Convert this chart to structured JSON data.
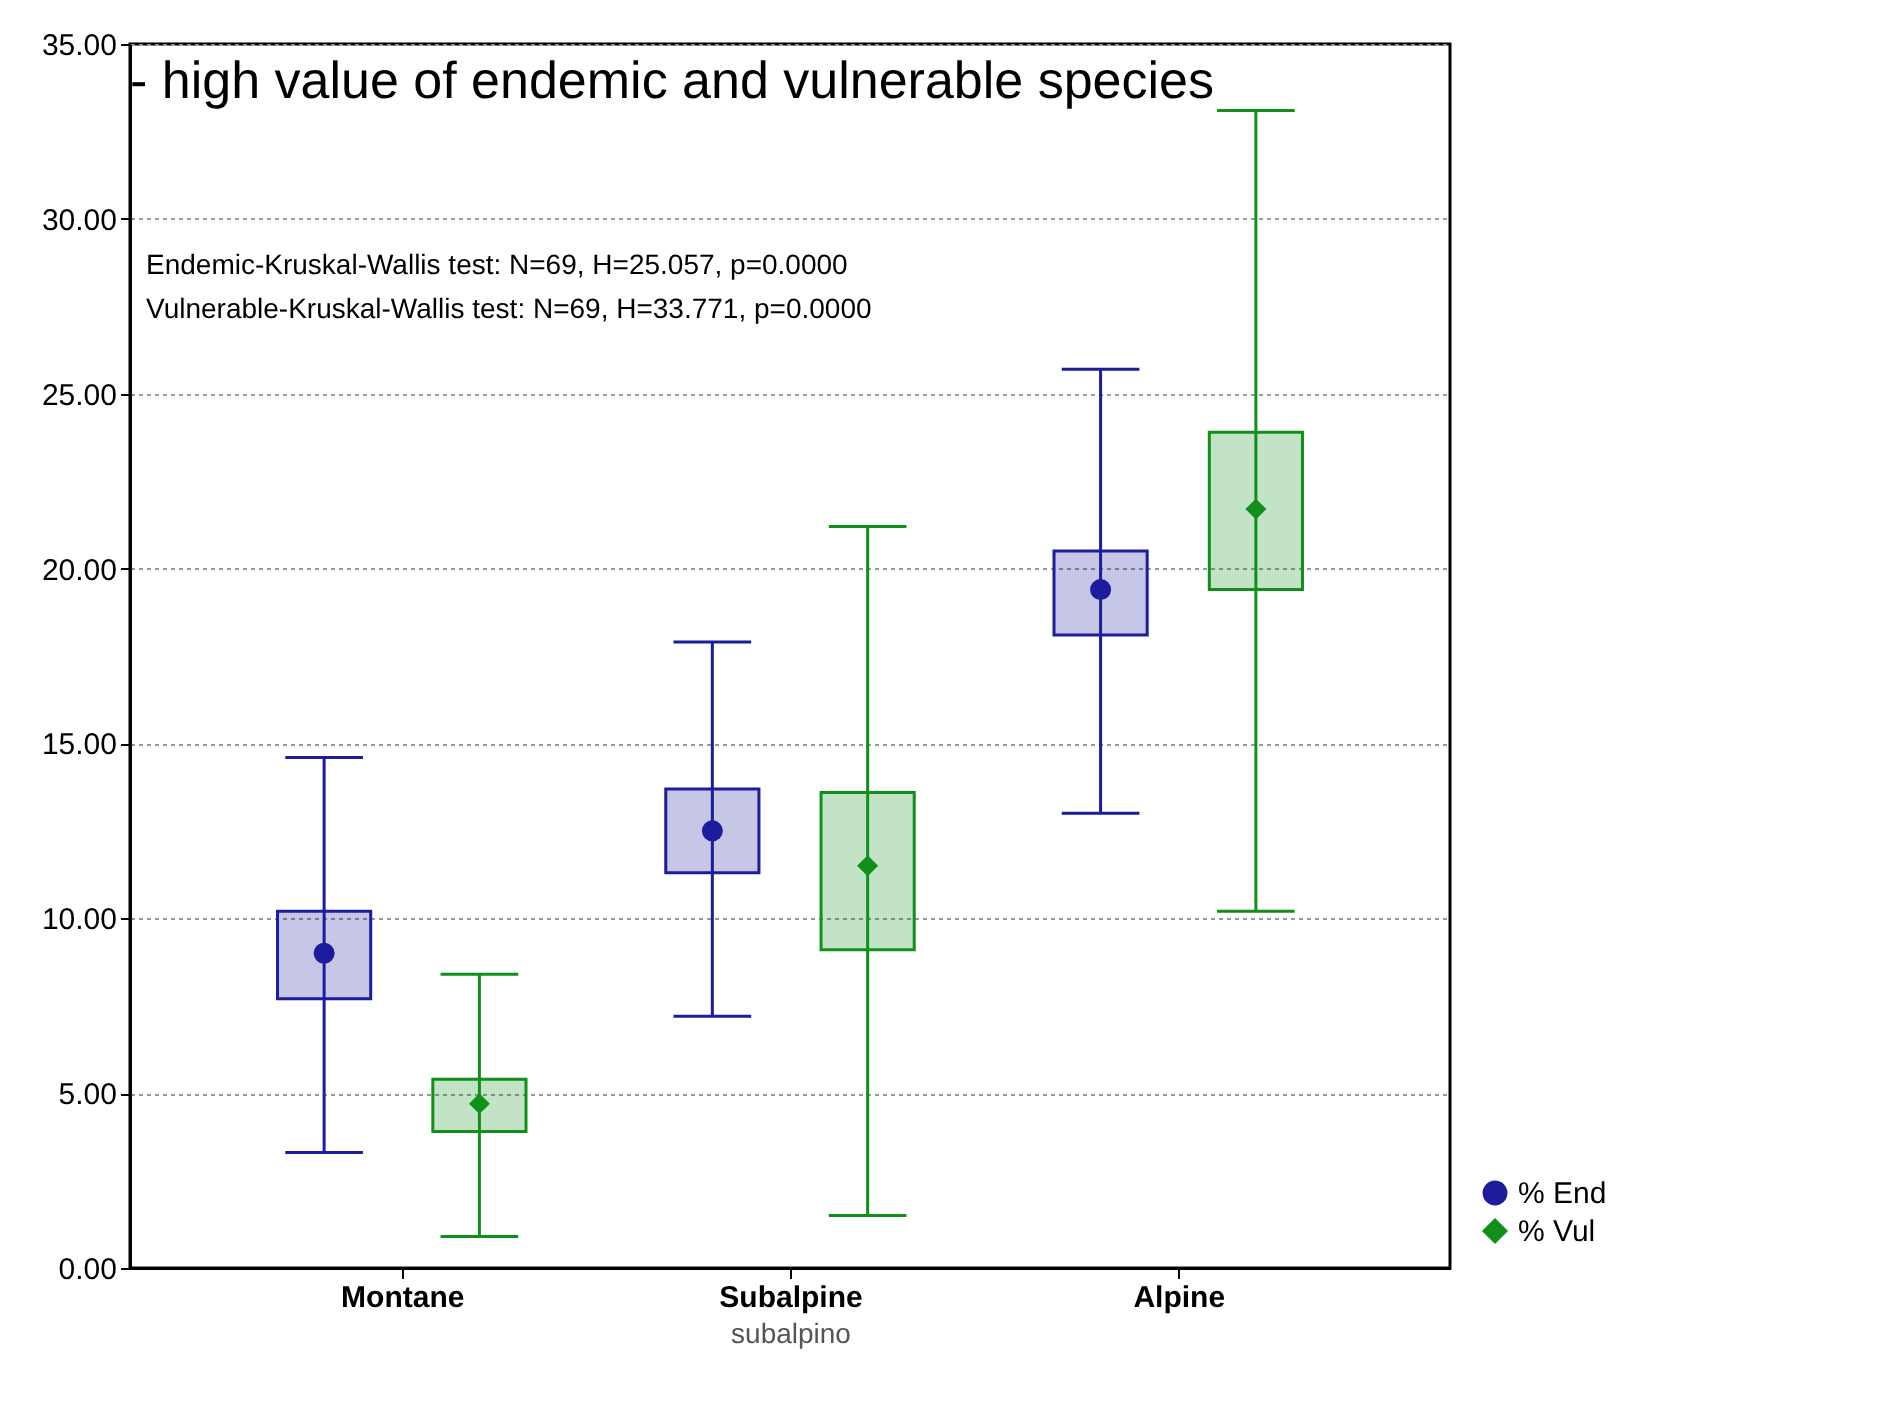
{
  "chart_data": {
    "type": "box",
    "title": "- high value of endemic  and vulnerable species",
    "xlabel": "subalpino",
    "categories": [
      "Montane",
      "Subalpine",
      "Alpine"
    ],
    "series": [
      {
        "name": "% End",
        "color": "#1c1c9c",
        "marker": "circle",
        "boxes": [
          {
            "low": 3.3,
            "q1": 7.7,
            "median": 9.0,
            "q3": 10.2,
            "high": 14.6
          },
          {
            "low": 7.2,
            "q1": 11.3,
            "median": 12.5,
            "q3": 13.7,
            "high": 17.9
          },
          {
            "low": 13.0,
            "q1": 18.1,
            "median": 19.4,
            "q3": 20.5,
            "high": 25.7
          }
        ]
      },
      {
        "name": "% Vul",
        "color": "#10901a",
        "marker": "diamond",
        "boxes": [
          {
            "low": 0.9,
            "q1": 3.9,
            "median": 4.7,
            "q3": 5.4,
            "high": 8.4
          },
          {
            "low": 1.5,
            "q1": 9.1,
            "median": 11.5,
            "q3": 13.6,
            "high": 21.2
          },
          {
            "low": 10.2,
            "q1": 19.4,
            "median": 21.7,
            "q3": 23.9,
            "high": 33.1
          }
        ]
      }
    ],
    "annotations": [
      "Endemic-Kruskal-Wallis test: N=69, H=25.057, p=0.0000",
      "Vulnerable-Kruskal-Wallis test: N=69, H=33.771, p=0.0000"
    ],
    "ylim": [
      0,
      35
    ],
    "yticks": [
      {
        "value": 0,
        "label": "0.00"
      },
      {
        "value": 5,
        "label": "5.00"
      },
      {
        "value": 10,
        "label": "10.00"
      },
      {
        "value": 15,
        "label": "15.00"
      },
      {
        "value": 20,
        "label": "20.00"
      },
      {
        "value": 25,
        "label": "25.00"
      },
      {
        "value": 30,
        "label": "30.00"
      },
      {
        "value": 35,
        "label": "35.00"
      }
    ],
    "grid": "y",
    "legend": "bottom right"
  }
}
